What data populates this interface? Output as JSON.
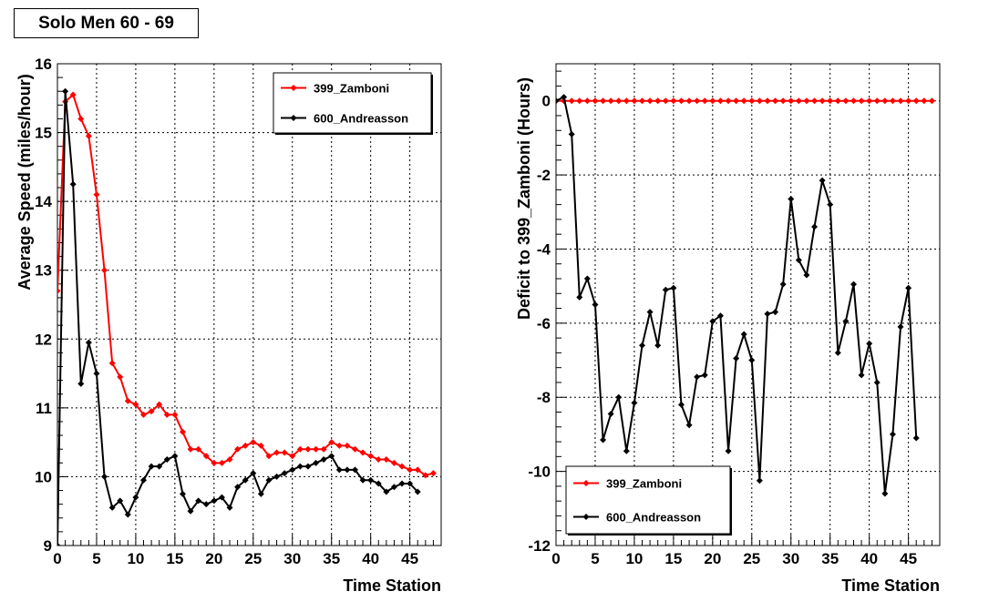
{
  "title": "Solo Men 60 - 69",
  "chart_data": [
    {
      "type": "line",
      "xlabel": "Time Station",
      "ylabel": "Average Speed (miles/hour)",
      "xlim": [
        0,
        49
      ],
      "ylim": [
        9,
        16
      ],
      "xticks": [
        0,
        5,
        10,
        15,
        20,
        25,
        30,
        35,
        40,
        45
      ],
      "yticks": [
        9,
        10,
        11,
        12,
        13,
        14,
        15,
        16
      ],
      "grid": true,
      "legend": "top-right",
      "series": [
        {
          "name": "399_Zamboni",
          "color": "#ff0000",
          "x": [
            0,
            1,
            2,
            3,
            4,
            5,
            6,
            7,
            8,
            9,
            10,
            11,
            12,
            13,
            14,
            15,
            16,
            17,
            18,
            19,
            20,
            21,
            22,
            23,
            24,
            25,
            26,
            27,
            28,
            29,
            30,
            31,
            32,
            33,
            34,
            35,
            36,
            37,
            38,
            39,
            40,
            41,
            42,
            43,
            44,
            45,
            46,
            47,
            48
          ],
          "values": [
            12.7,
            15.45,
            15.55,
            15.2,
            14.95,
            14.1,
            13.0,
            11.65,
            11.45,
            11.1,
            11.05,
            10.9,
            10.95,
            11.05,
            10.9,
            10.9,
            10.65,
            10.4,
            10.4,
            10.3,
            10.2,
            10.2,
            10.25,
            10.4,
            10.45,
            10.5,
            10.45,
            10.3,
            10.35,
            10.35,
            10.3,
            10.4,
            10.4,
            10.4,
            10.4,
            10.5,
            10.45,
            10.45,
            10.4,
            10.35,
            10.3,
            10.25,
            10.25,
            10.2,
            10.15,
            10.1,
            10.1,
            10.02,
            10.05
          ]
        },
        {
          "name": "600_Andreasson",
          "color": "#000000",
          "x": [
            0,
            1,
            2,
            3,
            4,
            5,
            6,
            7,
            8,
            9,
            10,
            11,
            12,
            13,
            14,
            15,
            16,
            17,
            18,
            19,
            20,
            21,
            22,
            23,
            24,
            25,
            26,
            27,
            28,
            29,
            30,
            31,
            32,
            33,
            34,
            35,
            36,
            37,
            38,
            39,
            40,
            41,
            42,
            43,
            44,
            45,
            46
          ],
          "values": [
            9.0,
            15.6,
            14.25,
            11.35,
            11.95,
            11.5,
            10.0,
            9.55,
            9.65,
            9.45,
            9.7,
            9.95,
            10.15,
            10.15,
            10.25,
            10.3,
            9.75,
            9.5,
            9.65,
            9.6,
            9.65,
            9.7,
            9.55,
            9.85,
            9.95,
            10.05,
            9.75,
            9.95,
            10.0,
            10.05,
            10.1,
            10.15,
            10.15,
            10.2,
            10.25,
            10.3,
            10.1,
            10.1,
            10.1,
            9.95,
            9.95,
            9.9,
            9.78,
            9.85,
            9.9,
            9.9,
            9.78
          ]
        }
      ]
    },
    {
      "type": "line",
      "xlabel": "Time Station",
      "ylabel": "Deficit to 399_Zamboni (Hours)",
      "xlim": [
        0,
        49
      ],
      "ylim": [
        -12,
        1
      ],
      "xticks": [
        0,
        5,
        10,
        15,
        20,
        25,
        30,
        35,
        40,
        45
      ],
      "yticks": [
        0,
        -2,
        -4,
        -6,
        -8,
        -10,
        -12
      ],
      "grid": true,
      "legend": "bottom-left",
      "series": [
        {
          "name": "399_Zamboni",
          "color": "#ff0000",
          "x": [
            0,
            1,
            2,
            3,
            4,
            5,
            6,
            7,
            8,
            9,
            10,
            11,
            12,
            13,
            14,
            15,
            16,
            17,
            18,
            19,
            20,
            21,
            22,
            23,
            24,
            25,
            26,
            27,
            28,
            29,
            30,
            31,
            32,
            33,
            34,
            35,
            36,
            37,
            38,
            39,
            40,
            41,
            42,
            43,
            44,
            45,
            46,
            47,
            48
          ],
          "values": [
            0,
            0,
            0,
            0,
            0,
            0,
            0,
            0,
            0,
            0,
            0,
            0,
            0,
            0,
            0,
            0,
            0,
            0,
            0,
            0,
            0,
            0,
            0,
            0,
            0,
            0,
            0,
            0,
            0,
            0,
            0,
            0,
            0,
            0,
            0,
            0,
            0,
            0,
            0,
            0,
            0,
            0,
            0,
            0,
            0,
            0,
            0,
            0,
            0
          ]
        },
        {
          "name": "600_Andreasson",
          "color": "#000000",
          "x": [
            0,
            1,
            2,
            3,
            4,
            5,
            6,
            7,
            8,
            9,
            10,
            11,
            12,
            13,
            14,
            15,
            16,
            17,
            18,
            19,
            20,
            21,
            22,
            23,
            24,
            25,
            26,
            27,
            28,
            29,
            30,
            31,
            32,
            33,
            34,
            35,
            36,
            37,
            38,
            39,
            40,
            41,
            42,
            43,
            44,
            45,
            46
          ],
          "values": [
            0,
            0.1,
            -0.9,
            -5.3,
            -4.8,
            -5.5,
            -9.15,
            -8.45,
            -8.0,
            -9.45,
            -8.15,
            -6.6,
            -5.7,
            -6.6,
            -5.1,
            -5.05,
            -8.2,
            -8.75,
            -7.45,
            -7.4,
            -5.95,
            -5.8,
            -9.45,
            -6.95,
            -6.3,
            -7.0,
            -10.25,
            -5.75,
            -5.7,
            -4.95,
            -2.65,
            -4.3,
            -4.7,
            -3.4,
            -2.15,
            -2.8,
            -6.8,
            -5.95,
            -4.95,
            -7.4,
            -6.55,
            -7.6,
            -10.6,
            -9.0,
            -6.1,
            -5.05,
            -9.1
          ]
        }
      ]
    }
  ]
}
